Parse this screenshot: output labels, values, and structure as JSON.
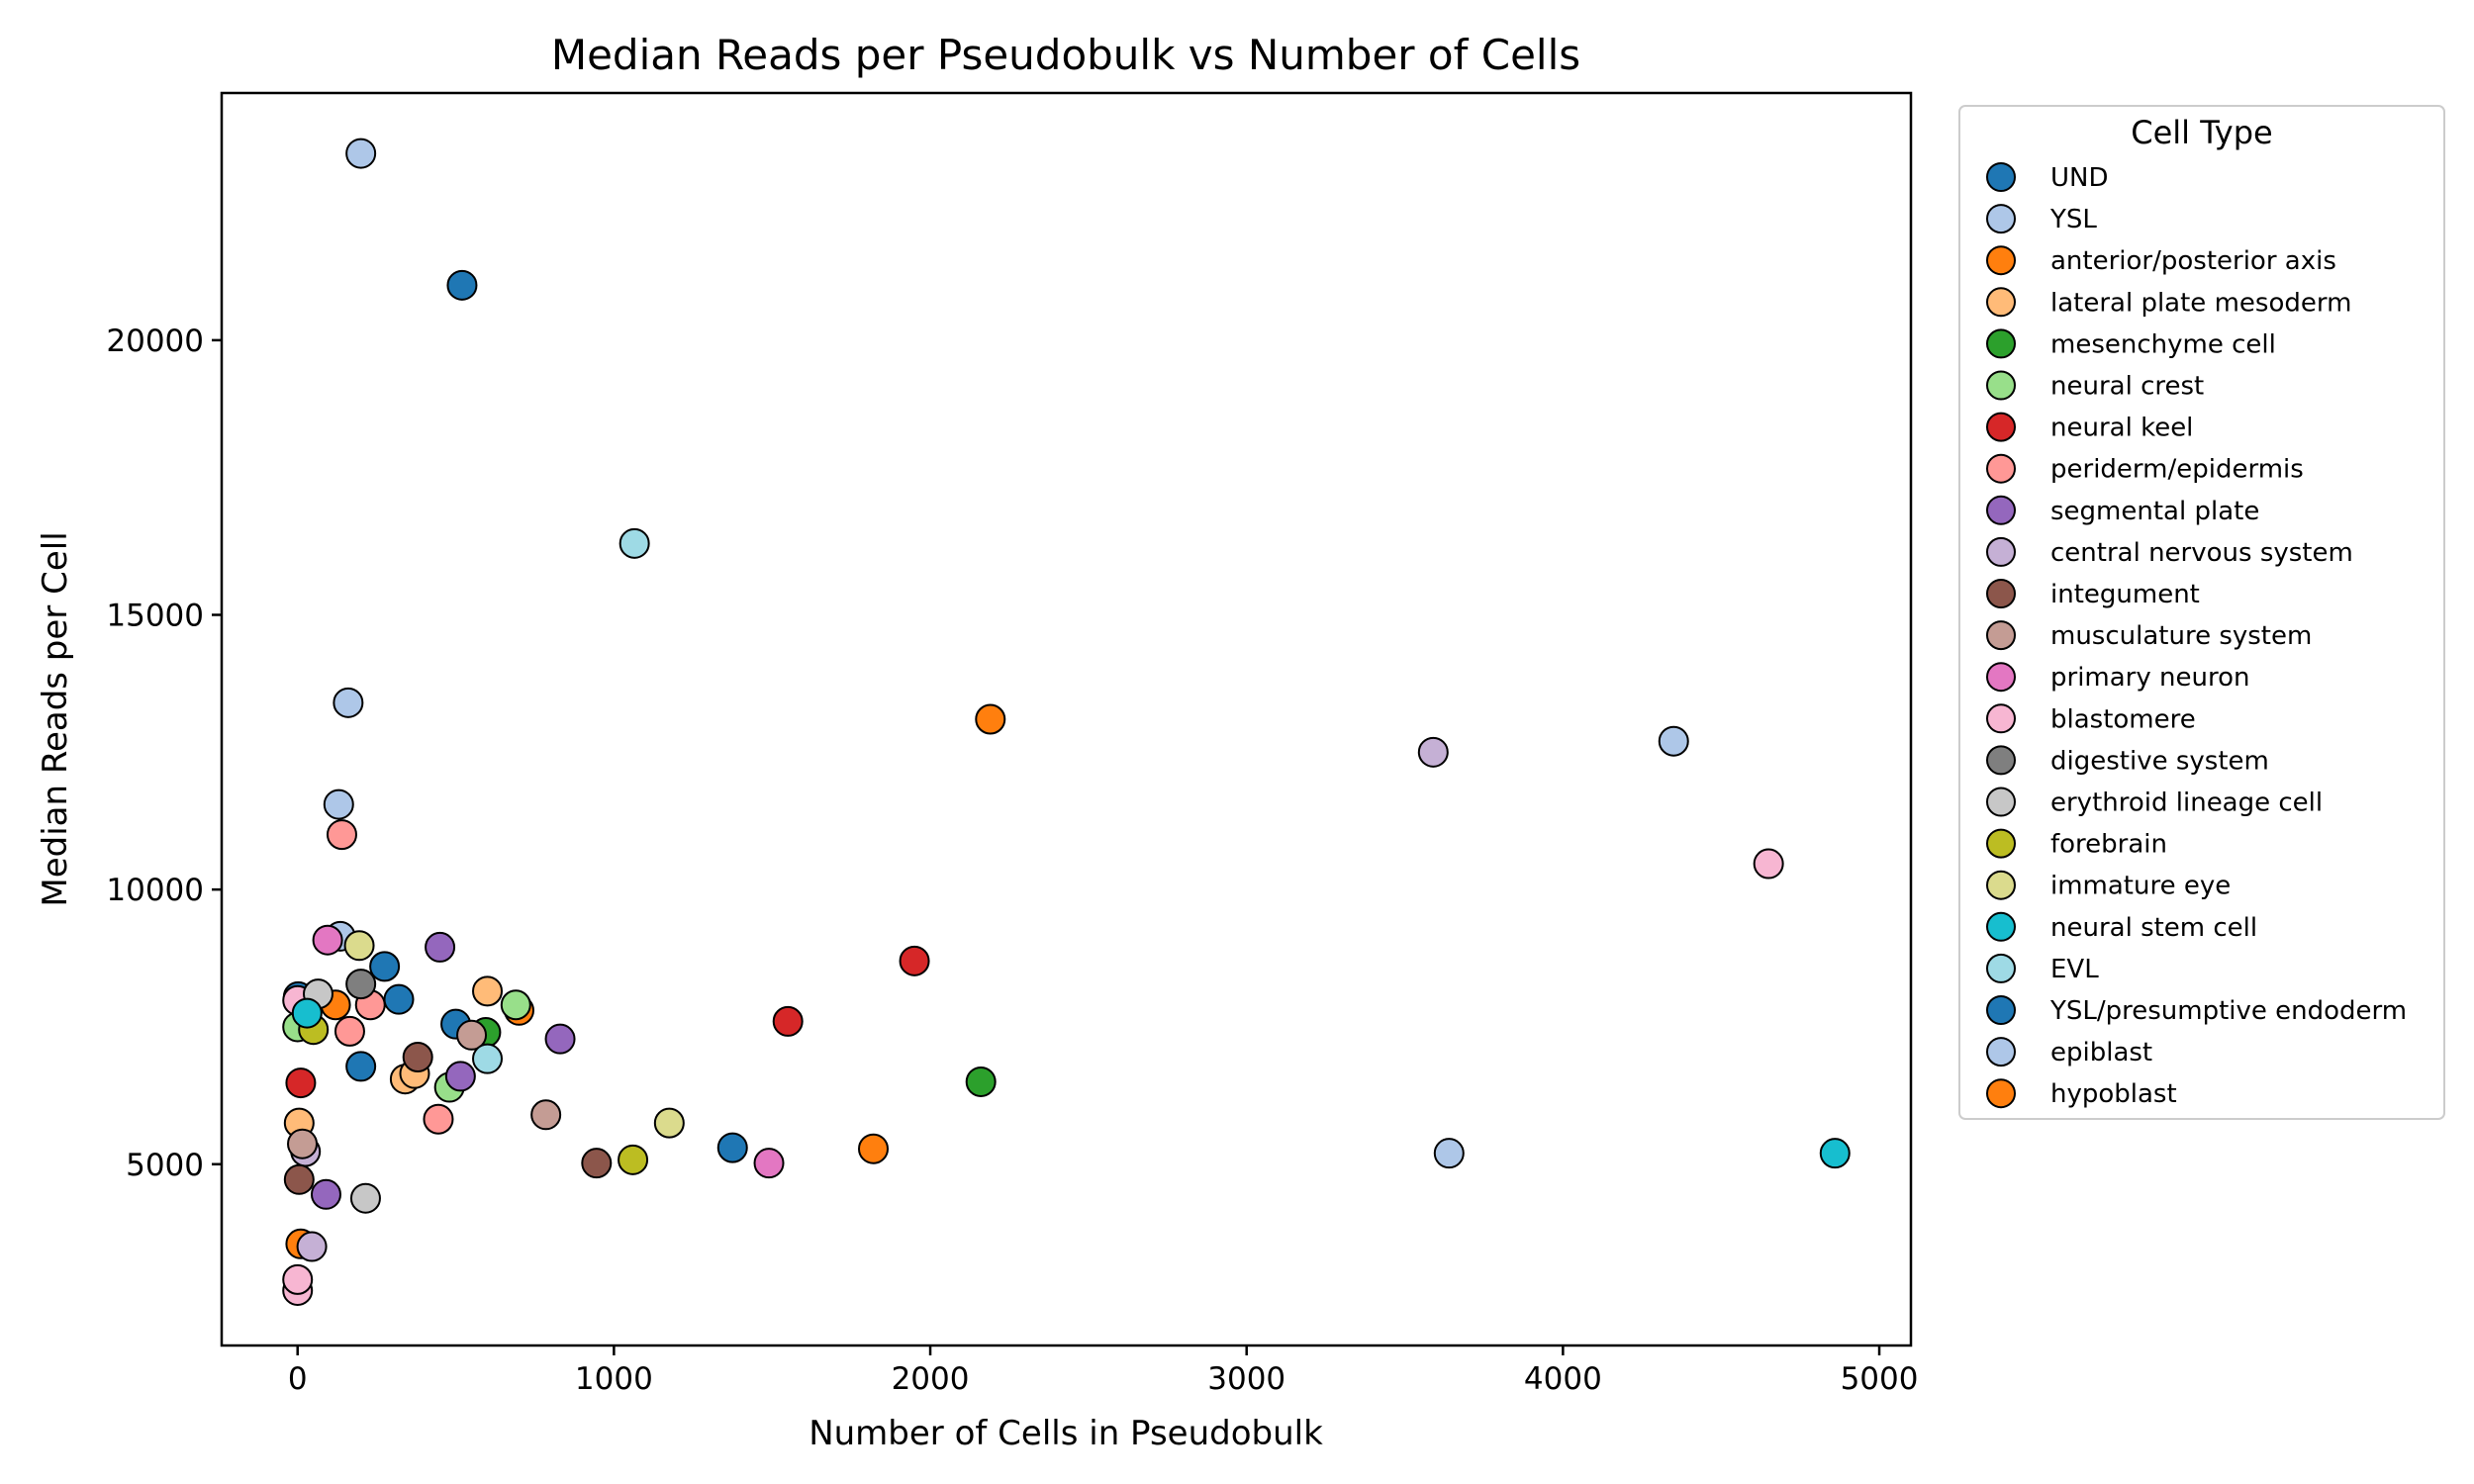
{
  "chart_data": {
    "type": "scatter",
    "title": "Median Reads per Pseudobulk vs Number of Cells",
    "xlabel": "Number of Cells in Pseudobulk",
    "ylabel": "Median Reads per Cell",
    "xlim": [
      -240,
      5100
    ],
    "ylim": [
      1700,
      24500
    ],
    "xticks": [
      0,
      1000,
      2000,
      3000,
      4000,
      5000
    ],
    "yticks": [
      5000,
      10000,
      15000,
      20000
    ],
    "grid": false,
    "legend_title": "Cell Type",
    "legend_position": "outside-right",
    "series": [
      {
        "name": "UND",
        "color": "#1f77b4",
        "points": [
          [
            520,
            21000
          ],
          [
            2,
            8050
          ],
          [
            275,
            8600
          ],
          [
            320,
            8000
          ],
          [
            200,
            6780
          ],
          [
            500,
            7550
          ]
        ]
      },
      {
        "name": "YSL",
        "color": "#aec7e8",
        "points": [
          [
            200,
            23400
          ],
          [
            160,
            13400
          ],
          [
            130,
            11550
          ],
          [
            135,
            9150
          ]
        ]
      },
      {
        "name": "anterior/posterior axis",
        "color": "#ff7f0e",
        "points": [
          [
            2190,
            13100
          ],
          [
            120,
            7900
          ],
          [
            700,
            7800
          ],
          [
            10,
            3550
          ]
        ]
      },
      {
        "name": "lateral plate mesoderm",
        "color": "#ffbb78",
        "points": [
          [
            600,
            8150
          ],
          [
            340,
            6550
          ],
          [
            5,
            5750
          ],
          [
            370,
            6650
          ]
        ]
      },
      {
        "name": "mesenchyme cell",
        "color": "#2ca02c",
        "points": [
          [
            2160,
            6500
          ],
          [
            595,
            7400
          ]
        ]
      },
      {
        "name": "neural crest",
        "color": "#98df8a",
        "points": [
          [
            690,
            7900
          ],
          [
            0,
            7500
          ],
          [
            480,
            6400
          ]
        ]
      },
      {
        "name": "neural keel",
        "color": "#d62728",
        "points": [
          [
            1950,
            8700
          ],
          [
            1550,
            7600
          ],
          [
            10,
            6480
          ]
        ]
      },
      {
        "name": "periderm/epidermis",
        "color": "#ff9896",
        "points": [
          [
            140,
            11000
          ],
          [
            230,
            7900
          ],
          [
            165,
            7420
          ],
          [
            445,
            5820
          ]
        ]
      },
      {
        "name": "segmental plate",
        "color": "#9467bd",
        "points": [
          [
            450,
            8950
          ],
          [
            830,
            7280
          ],
          [
            515,
            6600
          ],
          [
            90,
            4450
          ]
        ]
      },
      {
        "name": "central nervous system",
        "color": "#c5b0d5",
        "points": [
          [
            3590,
            12500
          ],
          [
            25,
            5230
          ],
          [
            45,
            3500
          ]
        ]
      },
      {
        "name": "integument",
        "color": "#8c564b",
        "points": [
          [
            380,
            6950
          ],
          [
            945,
            5020
          ],
          [
            5,
            4720
          ]
        ]
      },
      {
        "name": "musculature system",
        "color": "#c49c94",
        "points": [
          [
            785,
            5900
          ],
          [
            550,
            7350
          ],
          [
            15,
            5370
          ]
        ]
      },
      {
        "name": "primary neuron",
        "color": "#e377c2",
        "points": [
          [
            1490,
            5020
          ],
          [
            95,
            9080
          ]
        ]
      },
      {
        "name": "blastomere",
        "color": "#f7b6d2",
        "points": [
          [
            4650,
            10470
          ],
          [
            0,
            2700
          ],
          [
            0,
            2900
          ],
          [
            0,
            7980
          ]
        ]
      },
      {
        "name": "digestive system",
        "color": "#7f7f7f",
        "points": [
          [
            200,
            8280
          ]
        ]
      },
      {
        "name": "erythroid lineage cell",
        "color": "#c7c7c7",
        "points": [
          [
            65,
            8100
          ],
          [
            215,
            4380
          ]
        ]
      },
      {
        "name": "forebrain",
        "color": "#bcbd22",
        "points": [
          [
            1060,
            5080
          ],
          [
            50,
            7450
          ]
        ]
      },
      {
        "name": "immature eye",
        "color": "#dbdb8d",
        "points": [
          [
            195,
            8980
          ],
          [
            1175,
            5750
          ]
        ]
      },
      {
        "name": "neural stem cell",
        "color": "#17becf",
        "points": [
          [
            4860,
            5200
          ],
          [
            30,
            7750
          ]
        ]
      },
      {
        "name": "EVL",
        "color": "#9edae5",
        "points": [
          [
            1065,
            16300
          ],
          [
            600,
            6920
          ]
        ]
      },
      {
        "name": "YSL/presumptive endoderm",
        "color": "#1f77b4",
        "points": [
          [
            1375,
            5300
          ]
        ]
      },
      {
        "name": "epiblast",
        "color": "#aec7e8",
        "points": [
          [
            4350,
            12700
          ],
          [
            3640,
            5200
          ]
        ]
      },
      {
        "name": "hypoblast",
        "color": "#ff7f0e",
        "points": [
          [
            1820,
            5280
          ]
        ]
      }
    ]
  }
}
